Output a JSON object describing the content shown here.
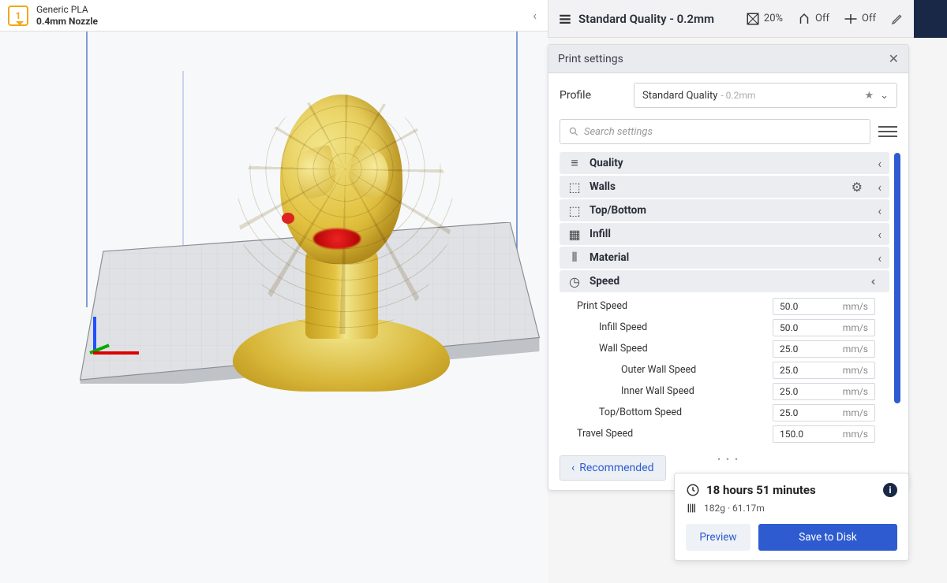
{
  "material": {
    "badge": "1",
    "line1": "Generic PLA",
    "line2": "0.4mm Nozzle"
  },
  "summary": {
    "profile_title": "Standard Quality - 0.2mm",
    "infill_pct": "20%",
    "support": "Off",
    "adhesion": "Off"
  },
  "panel": {
    "title": "Print settings",
    "profile_label": "Profile",
    "profile_value": "Standard Quality",
    "profile_sub": "- 0.2mm",
    "search_placeholder": "Search settings"
  },
  "categories": [
    {
      "label": "Quality",
      "icon": "≡",
      "expanded": false,
      "gear": false
    },
    {
      "label": "Walls",
      "icon": "⬚",
      "expanded": false,
      "gear": true
    },
    {
      "label": "Top/Bottom",
      "icon": "⬚",
      "expanded": false,
      "gear": false
    },
    {
      "label": "Infill",
      "icon": "▦",
      "expanded": false,
      "gear": false
    },
    {
      "label": "Material",
      "icon": "⦀",
      "expanded": false,
      "gear": false
    },
    {
      "label": "Speed",
      "icon": "◷",
      "expanded": true,
      "gear": false
    }
  ],
  "params": [
    {
      "label": "Print Speed",
      "value": "50.0",
      "unit": "mm/s",
      "indent": 1
    },
    {
      "label": "Infill Speed",
      "value": "50.0",
      "unit": "mm/s",
      "indent": 2
    },
    {
      "label": "Wall Speed",
      "value": "25.0",
      "unit": "mm/s",
      "indent": 2
    },
    {
      "label": "Outer Wall Speed",
      "value": "25.0",
      "unit": "mm/s",
      "indent": 3
    },
    {
      "label": "Inner Wall Speed",
      "value": "25.0",
      "unit": "mm/s",
      "indent": 3
    },
    {
      "label": "Top/Bottom Speed",
      "value": "25.0",
      "unit": "mm/s",
      "indent": 2
    },
    {
      "label": "Travel Speed",
      "value": "150.0",
      "unit": "mm/s",
      "indent": 1
    }
  ],
  "recommended_label": "Recommended",
  "result": {
    "time": "18 hours 51 minutes",
    "usage": "182g · 61.17m",
    "preview": "Preview",
    "save": "Save to Disk"
  },
  "colors": {
    "accent": "#2e5bd0",
    "dark": "#1a2847",
    "model_light": "#f2e58a",
    "model_mid": "#e2c240",
    "model_dark": "#c7a020",
    "error_red": "#dd2222"
  }
}
